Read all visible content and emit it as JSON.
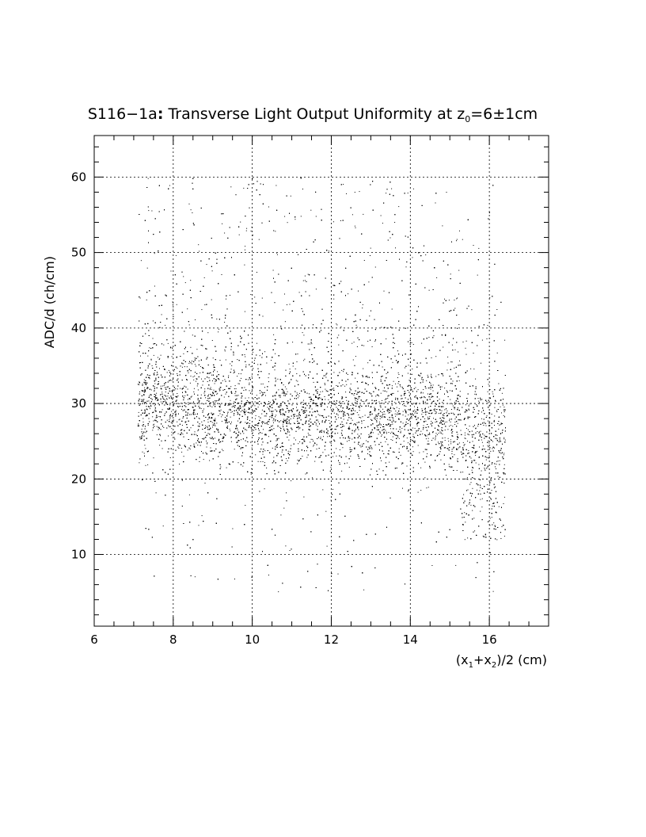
{
  "chart_data": {
    "type": "scatter",
    "title": {
      "pre": "S116−1a",
      "colon": ":",
      "main": " Transverse Light Output Uniformity at z",
      "sub": "0",
      "post": "=6±1cm"
    },
    "xlabel": {
      "p1": "(x",
      "s1": "1",
      "p2": "+x",
      "s2": "2",
      "p3": ")/2 (cm)"
    },
    "ylabel": "ADC/d (ch/cm)",
    "xlim": [
      6,
      17.5
    ],
    "ylim": [
      0.5,
      65.5
    ],
    "x_ticks": [
      6,
      8,
      10,
      12,
      14,
      16
    ],
    "x_tick_labels": [
      "6",
      "8",
      "10",
      "12",
      "14",
      "16"
    ],
    "y_ticks": [
      10,
      20,
      30,
      40,
      50,
      60
    ],
    "y_tick_labels": [
      "10",
      "20",
      "30",
      "40",
      "50",
      "60"
    ],
    "grid": true,
    "point_color": "#000000",
    "density": {
      "x_range": [
        7.1,
        16.4
      ],
      "core_y_mean_by_x": [
        {
          "x": 7.5,
          "y": 30
        },
        {
          "x": 9,
          "y": 29
        },
        {
          "x": 11,
          "y": 28
        },
        {
          "x": 13,
          "y": 28
        },
        {
          "x": 14.5,
          "y": 28
        },
        {
          "x": 16,
          "y": 26
        }
      ],
      "core_y_sd": 3.2,
      "approx_points": 13000
    }
  }
}
